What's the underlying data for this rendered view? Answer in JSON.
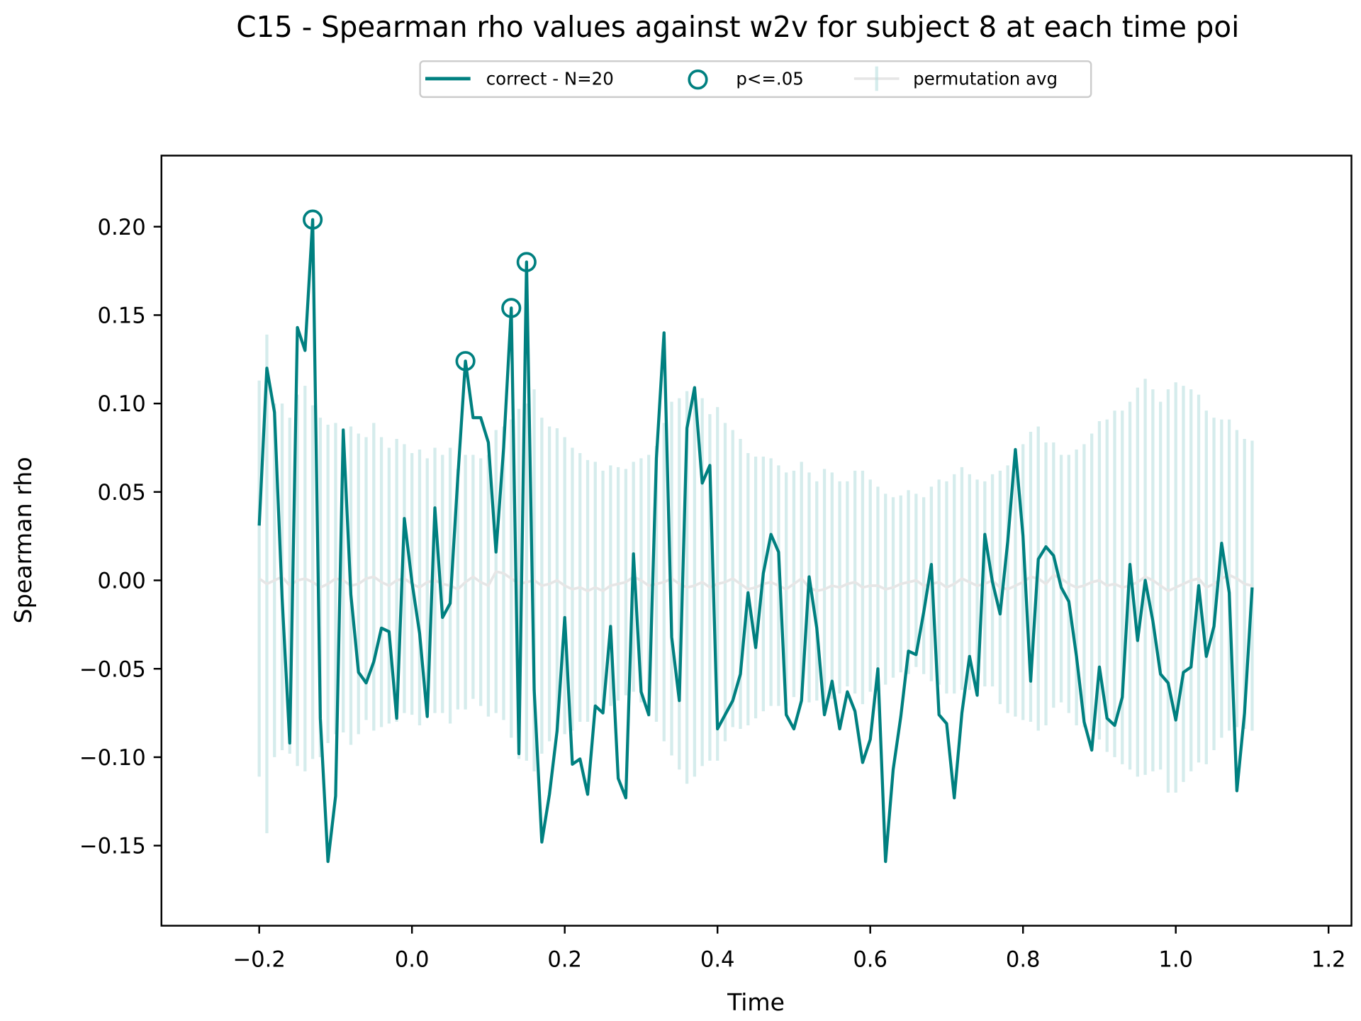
{
  "chart_data": {
    "type": "line",
    "title": "C15 - Spearman rho values against w2v for subject 8 at each time poi",
    "xlabel": "Time",
    "ylabel": "Spearman rho",
    "x": [
      -0.2,
      -0.19,
      -0.18,
      -0.17,
      -0.16,
      -0.15,
      -0.14,
      -0.13,
      -0.12,
      -0.11,
      -0.1,
      -0.09,
      -0.08,
      -0.07,
      -0.06,
      -0.05,
      -0.04,
      -0.03,
      -0.02,
      -0.01,
      0,
      0.01,
      0.02,
      0.03,
      0.04,
      0.05,
      0.06,
      0.07,
      0.08,
      0.09,
      0.1,
      0.11,
      0.12,
      0.13,
      0.14,
      0.15,
      0.16,
      0.17,
      0.18,
      0.19,
      0.2,
      0.21,
      0.22,
      0.23,
      0.24,
      0.25,
      0.26,
      0.27,
      0.28,
      0.29,
      0.3,
      0.31,
      0.32,
      0.33,
      0.34,
      0.35,
      0.36,
      0.37,
      0.38,
      0.39,
      0.4,
      0.41,
      0.42,
      0.43,
      0.44,
      0.45,
      0.46,
      0.47,
      0.48,
      0.49,
      0.5,
      0.51,
      0.52,
      0.53,
      0.54,
      0.55,
      0.56,
      0.57,
      0.58,
      0.59,
      0.6,
      0.61,
      0.62,
      0.63,
      0.64,
      0.65,
      0.66,
      0.67,
      0.68,
      0.69,
      0.7,
      0.71,
      0.72,
      0.73,
      0.74,
      0.75,
      0.76,
      0.77,
      0.78,
      0.79,
      0.8,
      0.81,
      0.82,
      0.83,
      0.84,
      0.85,
      0.86,
      0.87,
      0.88,
      0.89,
      0.9,
      0.91,
      0.92,
      0.93,
      0.94,
      0.95,
      0.96,
      0.97,
      0.98,
      0.99,
      1.0,
      1.01,
      1.02,
      1.03,
      1.04,
      1.05,
      1.06,
      1.07,
      1.08,
      1.09,
      1.1
    ],
    "series": [
      {
        "name": "correct - N=20",
        "color": "#008080",
        "values": [
          0.031,
          0.12,
          0.095,
          -0.01,
          -0.092,
          0.143,
          0.13,
          0.204,
          -0.078,
          -0.159,
          -0.122,
          0.085,
          -0.008,
          -0.052,
          -0.058,
          -0.046,
          -0.027,
          -0.029,
          -0.078,
          0.035,
          -0.001,
          -0.03,
          -0.077,
          0.041,
          -0.021,
          -0.013,
          0.058,
          0.124,
          0.092,
          0.092,
          0.078,
          0.016,
          0.075,
          0.154,
          -0.098,
          0.18,
          -0.062,
          -0.148,
          -0.121,
          -0.085,
          -0.021,
          -0.104,
          -0.101,
          -0.121,
          -0.071,
          -0.075,
          -0.026,
          -0.112,
          -0.123,
          0.015,
          -0.063,
          -0.076,
          0.069,
          0.14,
          -0.032,
          -0.068,
          0.086,
          0.109,
          0.055,
          0.065,
          -0.084,
          -0.076,
          -0.068,
          -0.053,
          -0.007,
          -0.038,
          0.004,
          0.026,
          0.016,
          -0.076,
          -0.084,
          -0.068,
          0.002,
          -0.027,
          -0.076,
          -0.057,
          -0.084,
          -0.063,
          -0.074,
          -0.103,
          -0.09,
          -0.05,
          -0.159,
          -0.107,
          -0.077,
          -0.04,
          -0.042,
          -0.018,
          0.009,
          -0.076,
          -0.081,
          -0.123,
          -0.075,
          -0.043,
          -0.065,
          0.026,
          -0.001,
          -0.019,
          0.022,
          0.074,
          0.025,
          -0.057,
          0.012,
          0.019,
          0.014,
          -0.004,
          -0.012,
          -0.043,
          -0.08,
          -0.096,
          -0.049,
          -0.078,
          -0.082,
          -0.066,
          0.009,
          -0.034,
          0.0,
          -0.023,
          -0.053,
          -0.058,
          -0.079,
          -0.052,
          -0.049,
          -0.003,
          -0.043,
          -0.026,
          0.021,
          -0.007,
          -0.119,
          -0.075,
          -0.004
        ]
      },
      {
        "name": "p<=.05",
        "color": "#008080",
        "type": "marker",
        "x": [
          -0.13,
          0.07,
          0.13,
          0.15
        ],
        "values": [
          0.204,
          0.124,
          0.154,
          0.18
        ]
      },
      {
        "name": "permutation avg",
        "color": "#b3dcdc",
        "mean_color": "#e6e6e6",
        "type": "errorbar",
        "values": [
          0.001,
          -0.002,
          0.0,
          0.002,
          -0.003,
          0.0,
          0.001,
          -0.001,
          -0.004,
          -0.002,
          0.001,
          0.0,
          -0.003,
          -0.002,
          0.001,
          0.002,
          -0.001,
          -0.003,
          0.0,
          0.001,
          -0.002,
          -0.004,
          -0.001,
          0.0,
          -0.002,
          -0.003,
          -0.005,
          -0.001,
          0.002,
          -0.001,
          -0.003,
          0.005,
          0.004,
          0.001,
          -0.002,
          -0.001,
          0.0,
          -0.003,
          -0.002,
          0.0,
          -0.003,
          -0.005,
          -0.004,
          -0.006,
          -0.004,
          -0.006,
          -0.003,
          -0.002,
          -0.001,
          0.002,
          0.0,
          -0.003,
          -0.002,
          -0.001,
          0.001,
          -0.002,
          -0.004,
          -0.003,
          -0.001,
          -0.004,
          -0.002,
          -0.001,
          0.001,
          -0.002,
          -0.005,
          -0.004,
          -0.002,
          -0.001,
          -0.003,
          -0.005,
          -0.002,
          0.001,
          -0.004,
          -0.006,
          -0.005,
          -0.003,
          -0.004,
          -0.002,
          -0.001,
          -0.004,
          -0.003,
          -0.003,
          -0.005,
          -0.004,
          -0.002,
          -0.001,
          0.0,
          -0.003,
          -0.002,
          -0.001,
          -0.004,
          -0.002,
          0.001,
          -0.001,
          -0.003,
          -0.002,
          0.0,
          -0.004,
          -0.005,
          -0.003,
          -0.001,
          0.002,
          0.001,
          -0.002,
          0.003,
          0.001,
          -0.002,
          -0.004,
          -0.003,
          -0.001,
          0.0,
          -0.003,
          -0.002,
          -0.004,
          -0.003,
          -0.001,
          0.002,
          0.0,
          -0.003,
          -0.006,
          -0.004,
          -0.002,
          0.0,
          0.001,
          -0.004,
          -0.002,
          0.001,
          0.003,
          0.001,
          -0.002,
          -0.003
        ],
        "errors": [
          0.112,
          0.141,
          0.1,
          0.098,
          0.095,
          0.105,
          0.109,
          0.1,
          0.096,
          0.09,
          0.088,
          0.086,
          0.09,
          0.085,
          0.08,
          0.087,
          0.082,
          0.078,
          0.08,
          0.076,
          0.074,
          0.078,
          0.07,
          0.075,
          0.073,
          0.078,
          0.068,
          0.072,
          0.069,
          0.07,
          0.074,
          0.08,
          0.083,
          0.09,
          0.099,
          0.101,
          0.108,
          0.095,
          0.089,
          0.086,
          0.084,
          0.08,
          0.076,
          0.074,
          0.071,
          0.068,
          0.068,
          0.066,
          0.064,
          0.065,
          0.069,
          0.074,
          0.078,
          0.09,
          0.1,
          0.105,
          0.111,
          0.108,
          0.104,
          0.098,
          0.1,
          0.09,
          0.084,
          0.082,
          0.077,
          0.074,
          0.072,
          0.07,
          0.068,
          0.066,
          0.064,
          0.066,
          0.065,
          0.062,
          0.068,
          0.064,
          0.06,
          0.058,
          0.063,
          0.066,
          0.06,
          0.056,
          0.054,
          0.051,
          0.05,
          0.052,
          0.049,
          0.05,
          0.055,
          0.058,
          0.06,
          0.062,
          0.063,
          0.061,
          0.06,
          0.058,
          0.06,
          0.066,
          0.07,
          0.074,
          0.078,
          0.082,
          0.086,
          0.08,
          0.075,
          0.07,
          0.073,
          0.078,
          0.08,
          0.084,
          0.09,
          0.094,
          0.098,
          0.1,
          0.104,
          0.11,
          0.112,
          0.108,
          0.104,
          0.114,
          0.116,
          0.112,
          0.108,
          0.104,
          0.1,
          0.094,
          0.09,
          0.088,
          0.084,
          0.082,
          0.082
        ]
      }
    ],
    "xlim": [
      -0.328,
      1.23
    ],
    "ylim": [
      -0.1953,
      0.2402
    ],
    "xticks": [
      {
        "value": -0.2,
        "label": "−0.2"
      },
      {
        "value": 0,
        "label": "0.0"
      },
      0.2,
      0.4,
      0.6,
      0.8,
      {
        "value": 1,
        "label": "1.0"
      },
      1.2
    ],
    "yticks": [
      {
        "value": -0.15,
        "label": "−0.15"
      },
      {
        "value": -0.1,
        "label": "−0.10"
      },
      {
        "value": -0.05,
        "label": "−0.05"
      },
      {
        "value": 0,
        "label": "0.00"
      },
      0.05,
      {
        "value": 0.1,
        "label": "0.10"
      },
      0.15,
      {
        "value": 0.2,
        "label": "0.20"
      }
    ],
    "legend": "upper center"
  }
}
